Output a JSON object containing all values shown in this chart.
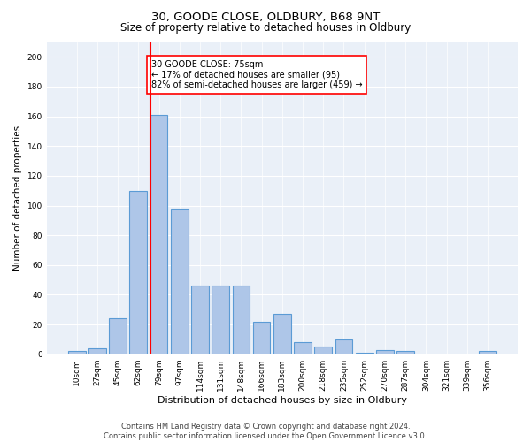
{
  "title1": "30, GOODE CLOSE, OLDBURY, B68 9NT",
  "title2": "Size of property relative to detached houses in Oldbury",
  "xlabel": "Distribution of detached houses by size in Oldbury",
  "ylabel": "Number of detached properties",
  "bar_labels": [
    "10sqm",
    "27sqm",
    "45sqm",
    "62sqm",
    "79sqm",
    "97sqm",
    "114sqm",
    "131sqm",
    "148sqm",
    "166sqm",
    "183sqm",
    "200sqm",
    "218sqm",
    "235sqm",
    "252sqm",
    "270sqm",
    "287sqm",
    "304sqm",
    "321sqm",
    "339sqm",
    "356sqm"
  ],
  "bar_values": [
    2,
    4,
    24,
    110,
    161,
    98,
    46,
    46,
    46,
    22,
    27,
    8,
    5,
    10,
    1,
    3,
    2,
    0,
    0,
    0,
    2
  ],
  "bar_color": "#aec6e8",
  "bar_edge_color": "#5b9bd5",
  "vline_color": "red",
  "annotation_text": "30 GOODE CLOSE: 75sqm\n← 17% of detached houses are smaller (95)\n82% of semi-detached houses are larger (459) →",
  "annotation_box_color": "white",
  "annotation_border_color": "red",
  "footnote1": "Contains HM Land Registry data © Crown copyright and database right 2024.",
  "footnote2": "Contains public sector information licensed under the Open Government Licence v3.0.",
  "bg_color": "#eaf0f8",
  "ylim": [
    0,
    210
  ],
  "yticks": [
    0,
    20,
    40,
    60,
    80,
    100,
    120,
    140,
    160,
    180,
    200
  ]
}
